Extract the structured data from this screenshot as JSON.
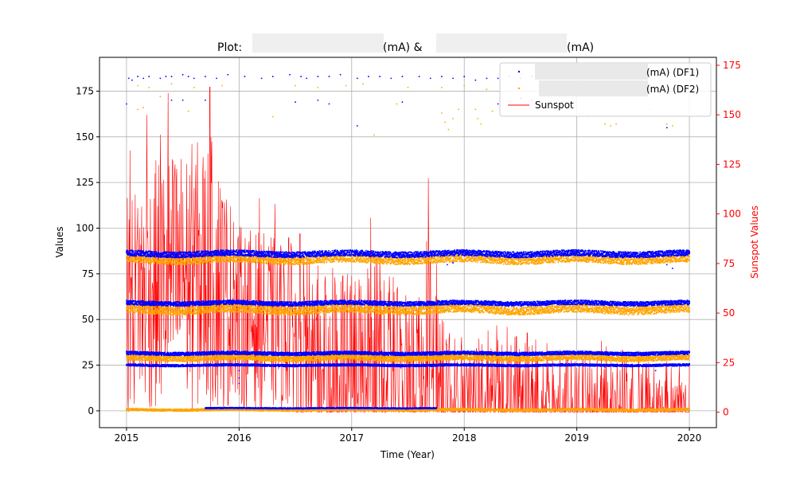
{
  "chart_data": {
    "type": "scatter",
    "title_prefix": "Plot: ",
    "title_mid": "(mA) & ",
    "title_suffix": "(mA)",
    "xlabel": "Time (Year)",
    "ylabel": "Values",
    "y2label": "Sunspot Values",
    "xlim": [
      2014.76,
      2020.24
    ],
    "ylim": [
      -9.2,
      193.5
    ],
    "y2lim": [
      -7.8,
      179
    ],
    "x_ticks": [
      2015,
      2016,
      2017,
      2018,
      2019,
      2020
    ],
    "y_ticks": [
      0,
      25,
      50,
      75,
      100,
      125,
      150,
      175
    ],
    "y2_ticks": [
      0,
      25,
      50,
      75,
      100,
      125,
      150,
      175
    ],
    "grid": true,
    "legend_position": "top-right",
    "colors": {
      "df1": "#0000ff",
      "df2": "#ffa500",
      "sunspot": "#ff0000",
      "axis2": "#ff0000"
    },
    "legend": [
      {
        "label": "(mA) (DF1)",
        "marker": "dot",
        "color": "#0000ff"
      },
      {
        "label": "(mA) (DF2)",
        "marker": "dot",
        "color": "#ffa500"
      },
      {
        "label": "Sunspot",
        "marker": "line",
        "color": "#ff0000"
      }
    ],
    "df1_bands": [
      {
        "x": [
          2015.0,
          2020.0
        ],
        "center": 86,
        "spread": 1.6
      },
      {
        "x": [
          2015.0,
          2020.0
        ],
        "center": 59,
        "spread": 1.2
      },
      {
        "x": [
          2015.0,
          2020.0
        ],
        "center": 31.5,
        "spread": 0.9
      },
      {
        "x": [
          2015.0,
          2020.0
        ],
        "center": 25,
        "spread": 0.6
      },
      {
        "x": [
          2015.7,
          2017.75
        ],
        "center": 1.5,
        "spread": 0.3
      }
    ],
    "df2_bands": [
      {
        "x": [
          2015.0,
          2020.0
        ],
        "center": 83,
        "spread": 2.2
      },
      {
        "x": [
          2015.0,
          2020.0
        ],
        "center": 55.5,
        "spread": 2.2
      },
      {
        "x": [
          2015.0,
          2020.0
        ],
        "center": 29,
        "spread": 1.5
      },
      {
        "x": [
          2015.0,
          2020.0
        ],
        "center": 0.6,
        "spread": 0.6
      }
    ],
    "df1_outliers": [
      [
        2015.02,
        182
      ],
      [
        2015.05,
        181
      ],
      [
        2015.1,
        183
      ],
      [
        2015.15,
        182
      ],
      [
        2015.2,
        183
      ],
      [
        2015.3,
        182
      ],
      [
        2015.35,
        183
      ],
      [
        2015.4,
        183
      ],
      [
        2015.5,
        184
      ],
      [
        2015.55,
        183
      ],
      [
        2015.6,
        182
      ],
      [
        2015.7,
        183
      ],
      [
        2015.8,
        182
      ],
      [
        2015.9,
        184
      ],
      [
        2016.05,
        183
      ],
      [
        2016.2,
        182
      ],
      [
        2016.3,
        183
      ],
      [
        2016.45,
        184
      ],
      [
        2016.55,
        183
      ],
      [
        2016.6,
        182
      ],
      [
        2016.7,
        183
      ],
      [
        2016.8,
        183
      ],
      [
        2016.9,
        184
      ],
      [
        2017.05,
        182
      ],
      [
        2017.15,
        183
      ],
      [
        2017.25,
        183
      ],
      [
        2017.35,
        182
      ],
      [
        2017.45,
        183
      ],
      [
        2017.6,
        183
      ],
      [
        2017.7,
        182
      ],
      [
        2017.8,
        183
      ],
      [
        2017.9,
        182
      ],
      [
        2018.0,
        183
      ],
      [
        2018.1,
        181
      ],
      [
        2018.2,
        182
      ],
      [
        2018.3,
        182
      ],
      [
        2018.4,
        183
      ],
      [
        2018.5,
        182
      ],
      [
        2018.6,
        183
      ],
      [
        2018.7,
        182
      ],
      [
        2018.85,
        183
      ],
      [
        2015.0,
        168
      ],
      [
        2015.4,
        170
      ],
      [
        2015.5,
        170
      ],
      [
        2015.7,
        170
      ],
      [
        2016.5,
        169
      ],
      [
        2016.7,
        170
      ],
      [
        2016.8,
        168
      ],
      [
        2017.45,
        169
      ],
      [
        2018.3,
        168
      ],
      [
        2018.5,
        171
      ],
      [
        2018.6,
        170
      ],
      [
        2019.8,
        155
      ],
      [
        2017.05,
        156
      ],
      [
        2019.25,
        24
      ],
      [
        2019.7,
        22
      ],
      [
        2016.0,
        18
      ],
      [
        2016.0,
        15
      ],
      [
        2017.85,
        80
      ],
      [
        2017.9,
        81
      ],
      [
        2019.85,
        78
      ],
      [
        2019.8,
        80
      ],
      [
        2016.0,
        22
      ]
    ],
    "df2_outliers": [
      [
        2015.1,
        178
      ],
      [
        2015.2,
        177
      ],
      [
        2015.3,
        172
      ],
      [
        2015.4,
        179
      ],
      [
        2015.6,
        177
      ],
      [
        2015.85,
        178
      ],
      [
        2016.5,
        178
      ],
      [
        2016.7,
        177
      ],
      [
        2016.95,
        178
      ],
      [
        2017.1,
        179
      ],
      [
        2017.5,
        177
      ],
      [
        2017.8,
        177
      ],
      [
        2018.0,
        178
      ],
      [
        2018.2,
        176
      ],
      [
        2015.1,
        165
      ],
      [
        2015.15,
        166
      ],
      [
        2015.55,
        164
      ],
      [
        2016.3,
        161
      ],
      [
        2017.2,
        151
      ],
      [
        2017.4,
        168
      ],
      [
        2017.8,
        163
      ],
      [
        2017.83,
        158
      ],
      [
        2017.86,
        154
      ],
      [
        2017.9,
        160
      ],
      [
        2017.95,
        165
      ],
      [
        2018.1,
        165
      ],
      [
        2018.12,
        160
      ],
      [
        2018.15,
        157
      ],
      [
        2018.25,
        164
      ],
      [
        2019.25,
        157
      ],
      [
        2019.3,
        156
      ],
      [
        2019.35,
        157
      ],
      [
        2019.65,
        165
      ],
      [
        2019.8,
        157
      ],
      [
        2019.85,
        156
      ],
      [
        2019.1,
        162
      ]
    ],
    "sunspot_envelope": [
      [
        2015.0,
        110
      ],
      [
        2015.3,
        130
      ],
      [
        2015.5,
        135
      ],
      [
        2015.75,
        140
      ],
      [
        2016.0,
        95
      ],
      [
        2016.25,
        90
      ],
      [
        2016.5,
        85
      ],
      [
        2016.75,
        75
      ],
      [
        2017.0,
        70
      ],
      [
        2017.25,
        85
      ],
      [
        2017.5,
        55
      ],
      [
        2017.7,
        95
      ],
      [
        2017.85,
        40
      ],
      [
        2018.25,
        45
      ],
      [
        2018.5,
        40
      ],
      [
        2018.75,
        35
      ],
      [
        2019.0,
        30
      ],
      [
        2019.25,
        38
      ],
      [
        2019.5,
        30
      ],
      [
        2019.75,
        25
      ],
      [
        2020.0,
        25
      ]
    ],
    "sunspot_peaks": [
      [
        2015.03,
        132
      ],
      [
        2015.1,
        103
      ],
      [
        2015.18,
        150
      ],
      [
        2015.3,
        140
      ],
      [
        2015.37,
        161
      ],
      [
        2015.43,
        125
      ],
      [
        2015.5,
        111
      ],
      [
        2015.6,
        113
      ],
      [
        2015.74,
        164
      ],
      [
        2015.83,
        113
      ],
      [
        2015.95,
        96
      ],
      [
        2016.18,
        108
      ],
      [
        2016.32,
        105
      ],
      [
        2016.44,
        88
      ],
      [
        2016.54,
        90
      ],
      [
        2016.7,
        74
      ],
      [
        2016.85,
        68
      ],
      [
        2017.17,
        98
      ],
      [
        2017.25,
        79
      ],
      [
        2017.48,
        59
      ],
      [
        2017.68,
        118
      ],
      [
        2018.38,
        43
      ],
      [
        2018.45,
        38
      ],
      [
        2018.56,
        40
      ],
      [
        2019.22,
        36
      ],
      [
        2019.55,
        31
      ],
      [
        2019.8,
        26
      ],
      [
        2020.0,
        24
      ]
    ]
  }
}
